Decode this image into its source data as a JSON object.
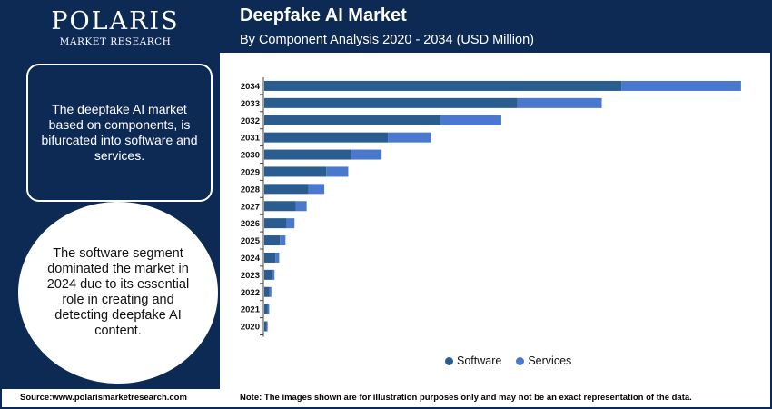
{
  "brand": {
    "name": "POLARIS",
    "tagline": "MARKET RESEARCH"
  },
  "header": {
    "title": "Deepfake AI Market",
    "subtitle": "By Component Analysis 2020 - 2034 (USD Million)"
  },
  "info_box": {
    "text": "The deepfake AI market based on components, is bifurcated into software and services."
  },
  "info_circle": {
    "text": "The software segment dominated the market in 2024 due to its essential role in creating and detecting deepfake AI content."
  },
  "legend": {
    "software": "Software",
    "services": "Services"
  },
  "colors": {
    "navy": "#0d2a55",
    "software": "#2b5c8f",
    "services": "#4a78cf"
  },
  "footer": {
    "source": "Source:www.polarismarketresearch.com",
    "note": "Note: The images shown are for illustration purposes only and may not be an exact representation of the data."
  },
  "chart_data": {
    "type": "bar",
    "orientation": "horizontal",
    "stacked": true,
    "title": "Deepfake AI Market",
    "subtitle": "By Component Analysis 2020 - 2034 (USD Million)",
    "xlabel": "",
    "ylabel": "",
    "categories": [
      "2034",
      "2033",
      "2032",
      "2031",
      "2030",
      "2029",
      "2028",
      "2027",
      "2026",
      "2025",
      "2024",
      "2023",
      "2022",
      "2021",
      "2020"
    ],
    "series": [
      {
        "name": "Software",
        "values": [
          9100,
          6450,
          4500,
          3150,
          2200,
          1580,
          1130,
          800,
          570,
          400,
          280,
          190,
          130,
          90,
          60
        ]
      },
      {
        "name": "Services",
        "values": [
          3050,
          2150,
          1540,
          1100,
          790,
          560,
          400,
          280,
          200,
          140,
          100,
          70,
          50,
          35,
          25
        ]
      }
    ],
    "xlim": [
      0,
      12500
    ],
    "grid": false,
    "legend_position": "bottom"
  }
}
